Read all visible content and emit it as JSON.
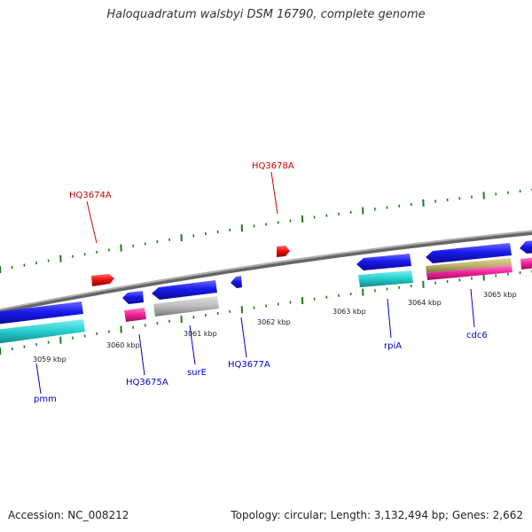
{
  "title": "Haloquadratum walsbyi DSM 16790, complete genome",
  "footer": {
    "accession": "Accession: NC_008212",
    "summary": "Topology: circular; Length: 3,132,494 bp; Genes: 2,662"
  },
  "colors": {
    "backbone": "#8a8a8a",
    "tick_green": "#1f7a1f",
    "gene_blue": "#1a1aee",
    "gene_red": "#ee1111",
    "cyan": "#22cccc",
    "magenta": "#ee2299",
    "gray": "#b8b8b8",
    "khaki": "#bdb06a",
    "label_blue": "#0000cc",
    "label_red": "#cc0000"
  },
  "kbp_labels": [
    "3059 kbp",
    "3060 kbp",
    "3061 kbp",
    "3062 kbp",
    "3063 kbp",
    "3064 kbp",
    "3065 kbp"
  ],
  "gene_labels": {
    "pmm": "pmm",
    "HQ3675A": "HQ3675A",
    "surE": "surE",
    "HQ3677A": "HQ3677A",
    "rpiA": "rpiA",
    "cdc6": "cdc6",
    "HQ3674A": "HQ3674A",
    "HQ3678A": "HQ3678A"
  }
}
